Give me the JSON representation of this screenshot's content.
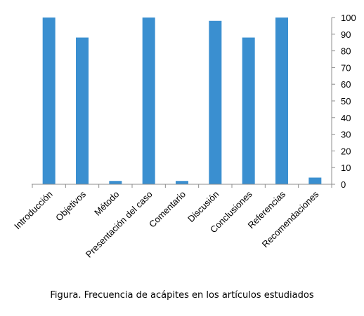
{
  "caption": "Figura. Frecuencia de acápites en los artículos estudiados",
  "colors": {
    "bar": "#3a8fd0",
    "axis": "#8c8c8c",
    "tick_text": "#000000"
  },
  "chart_data": {
    "type": "bar",
    "categories": [
      "Introducción",
      "Objetivos",
      "Método",
      "Presentación del caso",
      "Comentario",
      "Discusión",
      "Conclusiones",
      "Referencias",
      "Recomendaciones"
    ],
    "values": [
      100,
      88,
      2,
      100,
      2,
      98,
      88,
      100,
      4
    ],
    "ylim": [
      0,
      100
    ],
    "yticks": [
      0,
      10,
      20,
      30,
      40,
      50,
      60,
      70,
      80,
      90,
      100
    ],
    "y_axis_position": "right",
    "grid": false,
    "legend": "none"
  }
}
